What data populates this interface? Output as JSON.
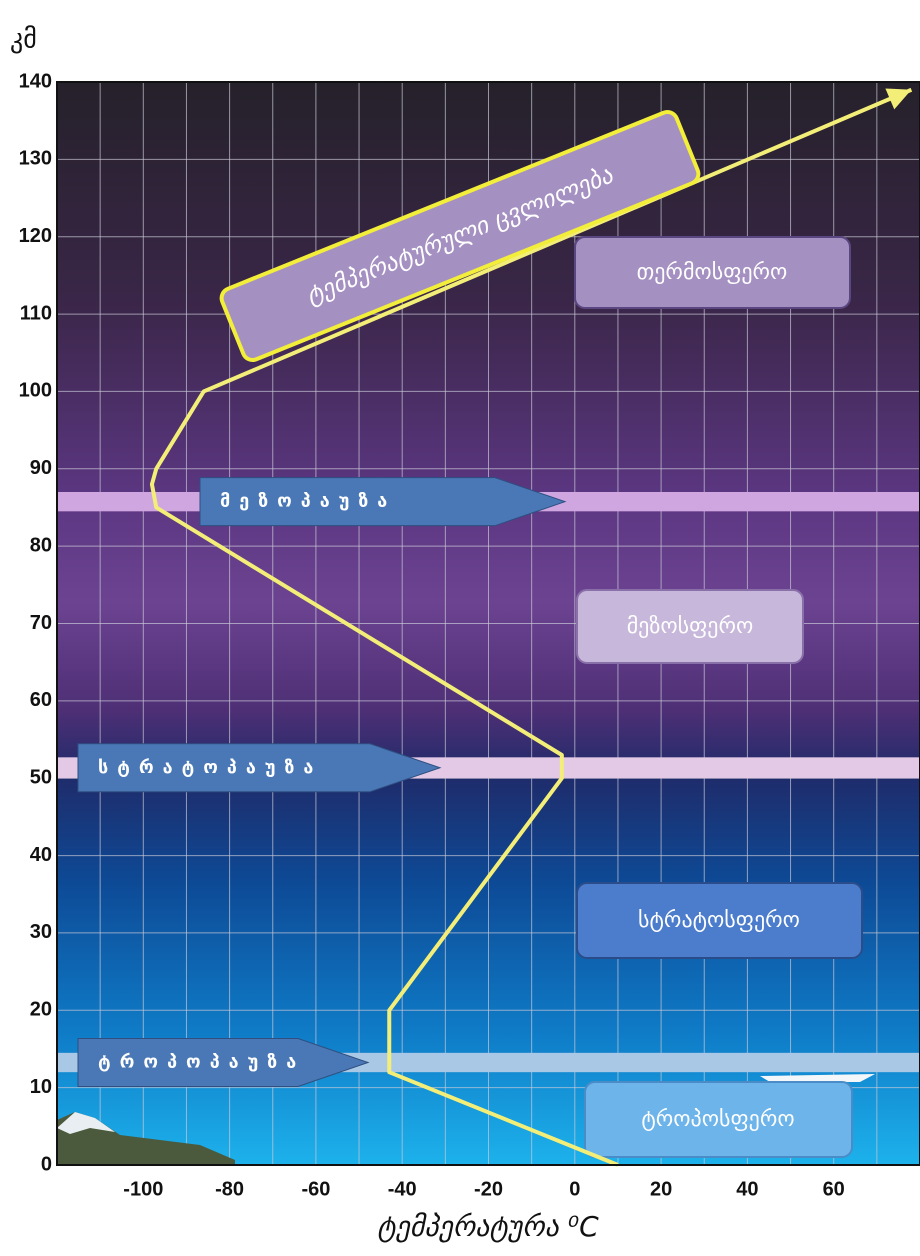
{
  "chart_data": {
    "type": "line",
    "y_unit_label": "კმ",
    "x_label": "ტემპერატურა  ⁰C",
    "curve_label": "ტემპერატურული ცვლილება",
    "x": [
      10,
      -43,
      -43,
      -3,
      -3,
      -97,
      -98,
      -97,
      -86,
      78
    ],
    "values": [
      0,
      12,
      20,
      50,
      53,
      85,
      88,
      90,
      100,
      139
    ],
    "color": "#f3ee78",
    "xlim": [
      -120,
      80
    ],
    "ylim": [
      0,
      140
    ],
    "xticks": [
      -100,
      -80,
      -60,
      -40,
      -20,
      0,
      20,
      40,
      60
    ],
    "x_minor_ticks": [
      -110,
      -90,
      -70,
      -50,
      -30,
      -10,
      10,
      30,
      50,
      70
    ],
    "yticks": [
      0,
      10,
      20,
      30,
      40,
      50,
      60,
      70,
      80,
      90,
      100,
      110,
      120,
      130,
      140
    ],
    "grid": true,
    "bands": [
      {
        "label": "ტროპოპაუზა",
        "from": 12,
        "to": 14.5,
        "color": "#a9c8e6"
      },
      {
        "label": "სტრატოპაუზა",
        "from": 50,
        "to": 52.7,
        "color": "#e3c9e6"
      },
      {
        "label": "მეზოპაუზა",
        "from": 84.5,
        "to": 87,
        "color": "#cfa6df"
      }
    ],
    "layers": [
      "თერმოსფერო",
      "მეზოსფერო",
      "სტრატოსფერო",
      "ტროპოსფერო"
    ]
  }
}
